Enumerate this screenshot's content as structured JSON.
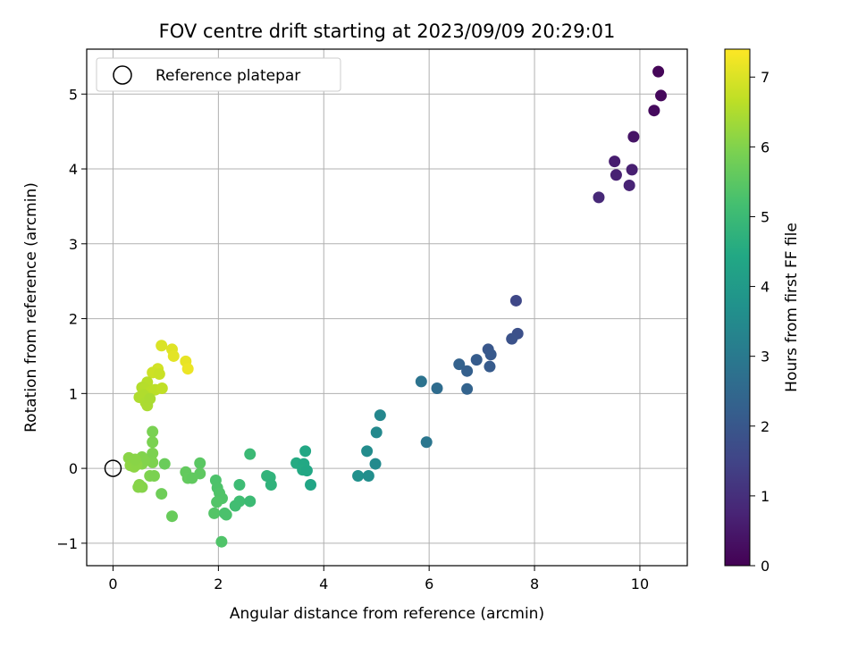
{
  "chart_data": {
    "type": "scatter",
    "title": "FOV centre drift starting at 2023/09/09 20:29:01",
    "xlabel": "Angular distance from reference (arcmin)",
    "ylabel": "Rotation from reference (arcmin)",
    "xlim": [
      -0.5,
      10.9
    ],
    "ylim": [
      -1.3,
      5.6
    ],
    "xticks": [
      0,
      2,
      4,
      6,
      8,
      10
    ],
    "yticks": [
      -1,
      0,
      1,
      2,
      3,
      4,
      5
    ],
    "xtick_labels": [
      "0",
      "2",
      "4",
      "6",
      "8",
      "10"
    ],
    "ytick_labels": [
      "−1",
      "0",
      "1",
      "2",
      "3",
      "4",
      "5"
    ],
    "grid": true,
    "colormap": "viridis",
    "colorbar": {
      "label": "Hours from first FF file",
      "range": [
        0,
        7.4
      ],
      "ticks": [
        0,
        1,
        2,
        3,
        4,
        5,
        6,
        7
      ],
      "tick_labels": [
        "0",
        "1",
        "2",
        "3",
        "4",
        "5",
        "6",
        "7"
      ]
    },
    "legend": {
      "position": "top-left",
      "label": "Reference platepar"
    },
    "reference_point": {
      "x": 0,
      "y": 0
    },
    "points": [
      {
        "x": 10.35,
        "y": 5.3,
        "t": 0.1
      },
      {
        "x": 10.4,
        "y": 4.98,
        "t": 0.15
      },
      {
        "x": 10.27,
        "y": 4.78,
        "t": 0.2
      },
      {
        "x": 9.88,
        "y": 4.43,
        "t": 0.4
      },
      {
        "x": 9.52,
        "y": 4.1,
        "t": 0.6
      },
      {
        "x": 9.85,
        "y": 3.99,
        "t": 0.65
      },
      {
        "x": 9.55,
        "y": 3.92,
        "t": 0.7
      },
      {
        "x": 9.8,
        "y": 3.78,
        "t": 0.75
      },
      {
        "x": 9.22,
        "y": 3.62,
        "t": 0.85
      },
      {
        "x": 7.65,
        "y": 2.24,
        "t": 1.6
      },
      {
        "x": 7.68,
        "y": 1.8,
        "t": 1.8
      },
      {
        "x": 7.57,
        "y": 1.73,
        "t": 1.85
      },
      {
        "x": 7.12,
        "y": 1.59,
        "t": 2.0
      },
      {
        "x": 7.17,
        "y": 1.52,
        "t": 2.05
      },
      {
        "x": 6.9,
        "y": 1.45,
        "t": 2.15
      },
      {
        "x": 6.57,
        "y": 1.39,
        "t": 2.3
      },
      {
        "x": 7.15,
        "y": 1.36,
        "t": 2.1
      },
      {
        "x": 6.72,
        "y": 1.3,
        "t": 2.25
      },
      {
        "x": 5.85,
        "y": 1.16,
        "t": 2.8
      },
      {
        "x": 6.15,
        "y": 1.07,
        "t": 2.6
      },
      {
        "x": 6.72,
        "y": 1.06,
        "t": 2.35
      },
      {
        "x": 5.07,
        "y": 0.71,
        "t": 3.4
      },
      {
        "x": 5.0,
        "y": 0.48,
        "t": 3.45
      },
      {
        "x": 5.95,
        "y": 0.35,
        "t": 2.9
      },
      {
        "x": 4.82,
        "y": 0.23,
        "t": 3.55
      },
      {
        "x": 4.98,
        "y": 0.06,
        "t": 3.5
      },
      {
        "x": 4.65,
        "y": -0.1,
        "t": 3.7
      },
      {
        "x": 4.85,
        "y": -0.1,
        "t": 3.6
      },
      {
        "x": 3.65,
        "y": 0.23,
        "t": 4.4
      },
      {
        "x": 3.48,
        "y": 0.07,
        "t": 4.5
      },
      {
        "x": 3.62,
        "y": 0.06,
        "t": 4.45
      },
      {
        "x": 3.6,
        "y": -0.02,
        "t": 4.48
      },
      {
        "x": 3.68,
        "y": -0.03,
        "t": 4.42
      },
      {
        "x": 3.75,
        "y": -0.22,
        "t": 4.35
      },
      {
        "x": 2.6,
        "y": 0.19,
        "t": 5.0
      },
      {
        "x": 2.92,
        "y": -0.1,
        "t": 4.8
      },
      {
        "x": 2.98,
        "y": -0.12,
        "t": 4.78
      },
      {
        "x": 3.0,
        "y": -0.22,
        "t": 4.76
      },
      {
        "x": 2.4,
        "y": -0.22,
        "t": 5.05
      },
      {
        "x": 1.95,
        "y": -0.16,
        "t": 5.3
      },
      {
        "x": 1.98,
        "y": -0.26,
        "t": 5.32
      },
      {
        "x": 2.02,
        "y": -0.33,
        "t": 5.34
      },
      {
        "x": 2.07,
        "y": -0.4,
        "t": 5.36
      },
      {
        "x": 1.97,
        "y": -0.45,
        "t": 5.38
      },
      {
        "x": 2.4,
        "y": -0.44,
        "t": 5.1
      },
      {
        "x": 2.6,
        "y": -0.44,
        "t": 5.02
      },
      {
        "x": 2.32,
        "y": -0.5,
        "t": 5.12
      },
      {
        "x": 1.92,
        "y": -0.6,
        "t": 5.4
      },
      {
        "x": 2.12,
        "y": -0.6,
        "t": 5.28
      },
      {
        "x": 2.15,
        "y": -0.62,
        "t": 5.27
      },
      {
        "x": 2.06,
        "y": -0.98,
        "t": 5.35
      },
      {
        "x": 1.65,
        "y": 0.07,
        "t": 5.5
      },
      {
        "x": 1.65,
        "y": -0.07,
        "t": 5.55
      },
      {
        "x": 1.38,
        "y": -0.05,
        "t": 5.6
      },
      {
        "x": 1.42,
        "y": -0.13,
        "t": 5.62
      },
      {
        "x": 1.5,
        "y": -0.13,
        "t": 5.58
      },
      {
        "x": 0.98,
        "y": 0.06,
        "t": 5.7
      },
      {
        "x": 0.92,
        "y": -0.34,
        "t": 5.75
      },
      {
        "x": 1.12,
        "y": -0.64,
        "t": 5.68
      },
      {
        "x": 0.75,
        "y": 0.49,
        "t": 5.9
      },
      {
        "x": 0.75,
        "y": 0.35,
        "t": 5.92
      },
      {
        "x": 0.75,
        "y": 0.2,
        "t": 5.94
      },
      {
        "x": 0.75,
        "y": 0.08,
        "t": 5.95
      },
      {
        "x": 0.7,
        "y": -0.1,
        "t": 5.96
      },
      {
        "x": 0.78,
        "y": -0.1,
        "t": 5.93
      },
      {
        "x": 0.55,
        "y": 0.15,
        "t": 6.0
      },
      {
        "x": 0.48,
        "y": 0.08,
        "t": 6.02
      },
      {
        "x": 0.55,
        "y": 0.06,
        "t": 6.03
      },
      {
        "x": 0.6,
        "y": 0.1,
        "t": 6.01
      },
      {
        "x": 0.3,
        "y": 0.14,
        "t": 6.1
      },
      {
        "x": 0.35,
        "y": 0.1,
        "t": 6.08
      },
      {
        "x": 0.38,
        "y": 0.06,
        "t": 6.12
      },
      {
        "x": 0.33,
        "y": 0.04,
        "t": 6.14
      },
      {
        "x": 0.4,
        "y": 0.02,
        "t": 6.13
      },
      {
        "x": 0.45,
        "y": 0.05,
        "t": 6.11
      },
      {
        "x": 0.42,
        "y": 0.12,
        "t": 6.09
      },
      {
        "x": 0.5,
        "y": -0.22,
        "t": 6.05
      },
      {
        "x": 0.55,
        "y": -0.25,
        "t": 6.04
      },
      {
        "x": 0.48,
        "y": -0.25,
        "t": 6.06
      },
      {
        "x": 0.92,
        "y": 1.64,
        "t": 7.0
      },
      {
        "x": 1.12,
        "y": 1.59,
        "t": 7.05
      },
      {
        "x": 1.15,
        "y": 1.5,
        "t": 7.1
      },
      {
        "x": 1.38,
        "y": 1.43,
        "t": 7.15
      },
      {
        "x": 1.42,
        "y": 1.33,
        "t": 7.2
      },
      {
        "x": 0.85,
        "y": 1.33,
        "t": 6.9
      },
      {
        "x": 0.75,
        "y": 1.28,
        "t": 6.85
      },
      {
        "x": 0.88,
        "y": 1.26,
        "t": 6.8
      },
      {
        "x": 0.65,
        "y": 1.15,
        "t": 6.6
      },
      {
        "x": 0.55,
        "y": 1.08,
        "t": 6.55
      },
      {
        "x": 0.6,
        "y": 1.06,
        "t": 6.58
      },
      {
        "x": 0.72,
        "y": 1.03,
        "t": 6.62
      },
      {
        "x": 0.8,
        "y": 1.05,
        "t": 6.64
      },
      {
        "x": 0.93,
        "y": 1.07,
        "t": 6.7
      },
      {
        "x": 0.5,
        "y": 0.95,
        "t": 6.5
      },
      {
        "x": 0.58,
        "y": 0.98,
        "t": 6.52
      },
      {
        "x": 0.62,
        "y": 0.88,
        "t": 6.48
      },
      {
        "x": 0.65,
        "y": 0.84,
        "t": 6.46
      },
      {
        "x": 0.7,
        "y": 0.93,
        "t": 6.45
      }
    ]
  }
}
